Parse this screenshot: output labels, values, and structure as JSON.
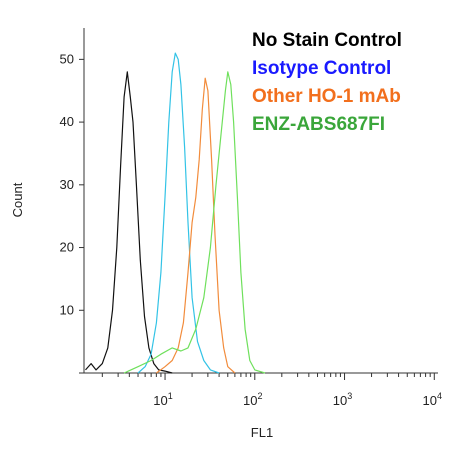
{
  "chart_data": {
    "type": "line",
    "xlabel": "FL1",
    "ylabel": "Count",
    "x_scale": "log",
    "xlim": [
      1.25,
      11000
    ],
    "ylim": [
      0,
      55
    ],
    "y_ticks": [
      0,
      10,
      20,
      30,
      40,
      50
    ],
    "y_tick_labels": [
      "",
      "10",
      "20",
      "30",
      "40",
      "50"
    ],
    "x_ticks": [
      {
        "value": 10,
        "base": "10",
        "exp": "1"
      },
      {
        "value": 100,
        "base": "10",
        "exp": "2"
      },
      {
        "value": 1000,
        "base": "10",
        "exp": "3"
      },
      {
        "value": 10000,
        "base": "10",
        "exp": "4"
      }
    ],
    "grid": false,
    "legend_position": "top-right",
    "series": [
      {
        "name": "No Stain Control",
        "color": "#111111",
        "points": [
          [
            1.3,
            0.5
          ],
          [
            1.5,
            1.5
          ],
          [
            1.7,
            0.5
          ],
          [
            2.0,
            1.5
          ],
          [
            2.3,
            4
          ],
          [
            2.6,
            10
          ],
          [
            2.9,
            20
          ],
          [
            3.2,
            33
          ],
          [
            3.5,
            44
          ],
          [
            3.8,
            48
          ],
          [
            4.1,
            44
          ],
          [
            4.4,
            40
          ],
          [
            4.8,
            30
          ],
          [
            5.3,
            18
          ],
          [
            5.9,
            9
          ],
          [
            6.6,
            4
          ],
          [
            7.5,
            1.5
          ],
          [
            8.5,
            0.5
          ],
          [
            10,
            0.3
          ],
          [
            12,
            0
          ]
        ]
      },
      {
        "name": "Isotype Control",
        "color": "#33c3e6",
        "points": [
          [
            5.0,
            0
          ],
          [
            6.0,
            1
          ],
          [
            7.0,
            3
          ],
          [
            8.0,
            8
          ],
          [
            9.0,
            16
          ],
          [
            10.0,
            28
          ],
          [
            11.0,
            40
          ],
          [
            12.0,
            48
          ],
          [
            13.0,
            51
          ],
          [
            14.0,
            50
          ],
          [
            15.0,
            46
          ],
          [
            16.5,
            36
          ],
          [
            18.0,
            24
          ],
          [
            20.0,
            12
          ],
          [
            23.0,
            5
          ],
          [
            27.0,
            2
          ],
          [
            32.0,
            0.5
          ],
          [
            40.0,
            0
          ]
        ]
      },
      {
        "name": "Other HO-1 mAb",
        "color": "#f28c3c",
        "points": [
          [
            8.0,
            0
          ],
          [
            10.0,
            1
          ],
          [
            12.0,
            2
          ],
          [
            14.0,
            4
          ],
          [
            16.0,
            8
          ],
          [
            18.0,
            16
          ],
          [
            20.0,
            24
          ],
          [
            22.0,
            28
          ],
          [
            24.0,
            34
          ],
          [
            26.0,
            42
          ],
          [
            28.0,
            47
          ],
          [
            30.0,
            45
          ],
          [
            33.0,
            34
          ],
          [
            36.0,
            22
          ],
          [
            40.0,
            10
          ],
          [
            45.0,
            4
          ],
          [
            50.0,
            1
          ],
          [
            60.0,
            0
          ]
        ]
      },
      {
        "name": "ENZ-ABS687FI",
        "color": "#6fe05c",
        "points": [
          [
            3.5,
            0
          ],
          [
            5.0,
            1
          ],
          [
            7.0,
            2
          ],
          [
            9.0,
            3
          ],
          [
            12.0,
            4
          ],
          [
            15.0,
            3.5
          ],
          [
            18.0,
            4
          ],
          [
            22.0,
            7
          ],
          [
            27.0,
            12
          ],
          [
            32.0,
            20
          ],
          [
            37.0,
            30
          ],
          [
            42.0,
            38
          ],
          [
            47.0,
            45
          ],
          [
            50.0,
            48
          ],
          [
            54.0,
            46
          ],
          [
            58.0,
            40
          ],
          [
            64.0,
            28
          ],
          [
            70.0,
            16
          ],
          [
            78.0,
            7
          ],
          [
            88.0,
            2
          ],
          [
            100.0,
            0.5
          ],
          [
            130.0,
            0
          ]
        ]
      }
    ]
  }
}
